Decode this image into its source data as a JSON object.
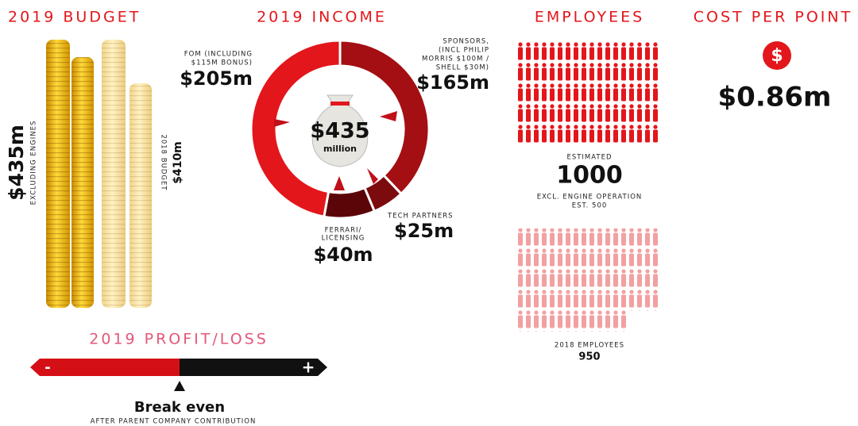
{
  "budget": {
    "title": "2019 BUDGET",
    "amount": "$435m",
    "note": "EXCLUDING ENGINES",
    "previous_label": "2018 BUDGET",
    "previous_amount": "$410m"
  },
  "chart_data": {
    "type": "donut",
    "title": "2019 INCOME",
    "categories": [
      [
        "FOM (INCLUDING",
        "$115M BONUS)"
      ],
      [
        "SPONSORS,",
        "(INCL PHILIP",
        "MORRIS $100M /",
        "SHELL $30M)"
      ],
      [
        "TECH PARTNERS"
      ],
      [
        "FERRARI/",
        "LICENSING"
      ]
    ],
    "values": [
      205,
      165,
      25,
      40
    ],
    "value_labels": [
      "$205m",
      "$165m",
      "$25m",
      "$40m"
    ],
    "colors": [
      "#e3161b",
      "#a30f13",
      "#7c0b0e",
      "#5c0508"
    ],
    "center_value": "$435",
    "center_unit": "million"
  },
  "employees": {
    "title": "EMPLOYEES",
    "estimated_label": "ESTIMATED",
    "estimated": "1000",
    "note_1": "EXCL. ENGINE OPERATION",
    "note_2": "EST. 500",
    "previous_label": "2018 EMPLOYEES",
    "previous": "950"
  },
  "cost_per_point": {
    "title": "COST PER POINT",
    "icon": "$",
    "amount": "$0.86m"
  },
  "profit_loss": {
    "title": "2019 PROFIT/LOSS",
    "minus": "-",
    "plus": "+",
    "result": "Break even",
    "note": "AFTER PARENT COMPANY CONTRIBUTION"
  }
}
